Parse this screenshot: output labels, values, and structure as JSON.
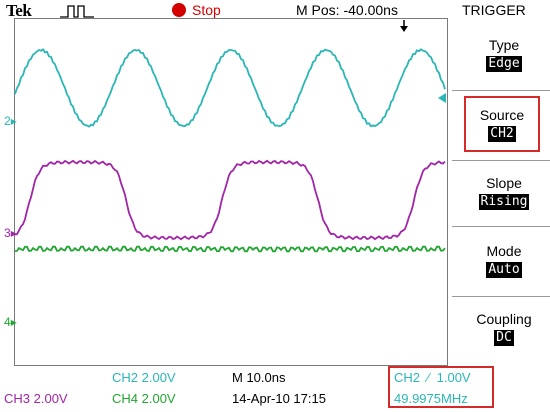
{
  "header": {
    "brand": "Tek",
    "acq_state": "Stop",
    "m_pos": "M Pos: -40.00ns",
    "menu_title": "TRIGGER"
  },
  "markers": {
    "ch2": "2",
    "ch3": "3",
    "ch4": "4"
  },
  "menu": {
    "items": [
      {
        "label": "Type",
        "value": "Edge"
      },
      {
        "label": "Source",
        "value": "CH2",
        "selected": true
      },
      {
        "label": "Slope",
        "value": "Rising"
      },
      {
        "label": "Mode",
        "value": "Auto"
      },
      {
        "label": "Coupling",
        "value": "DC"
      }
    ]
  },
  "readouts": {
    "ch2_scale": "CH2  2.00V",
    "ch3_scale": "CH3  2.00V",
    "ch4_scale": "CH4  2.00V",
    "timebase": "M 10.0ns",
    "datetime": "14-Apr-10 17:15",
    "trigger_level": "CH2  ∕  1.00V",
    "frequency": "49.9975MHz"
  },
  "colors": {
    "ch2": "#2ab6b6",
    "ch3": "#a224a8",
    "ch4": "#22a632",
    "highlight": "#d42a2a",
    "stop": "#d40000"
  }
}
